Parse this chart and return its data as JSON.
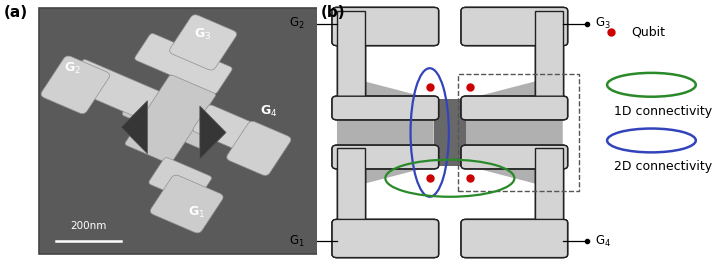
{
  "fig_width": 7.2,
  "fig_height": 2.65,
  "dpi": 100,
  "background_color": "#ffffff",
  "panel_a_label": "(a)",
  "panel_b_label": "(b)",
  "scalebar_text": "200nm",
  "legend_dot_color": "#cc0000",
  "legend_1d_color": "#2a8a2a",
  "legend_2d_color": "#3344bb",
  "legend_qubit_label": "Qubit",
  "legend_1d_label": "1D connectivity",
  "legend_2d_label": "2D connectivity",
  "gate_fill": "#d4d4d4",
  "gate_edge": "#222222",
  "sem_bg": "#5a5a5a"
}
